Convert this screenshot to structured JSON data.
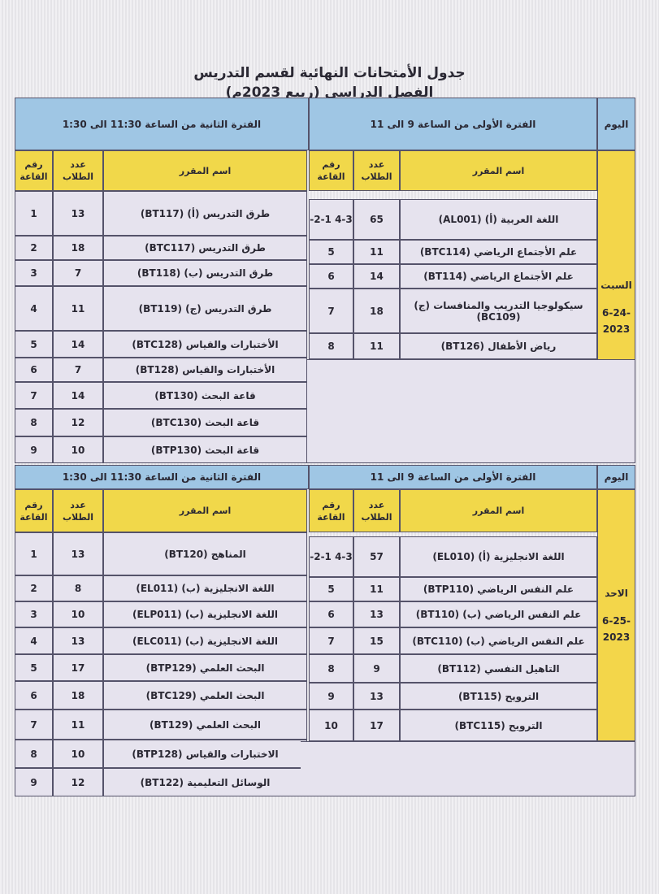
{
  "title": "جدول الأمتحانات النهائية لقسم التدريس",
  "subtitle": "الفصل الدراسي (ربيع 2023م)",
  "headers": {
    "day": "اليوم",
    "course": "اسم المقرر",
    "students": "عدد الطلاب",
    "room": "رقم القاعة"
  },
  "sections": [
    {
      "day_name": "السبت",
      "date_line1": "-6-24",
      "date_line2": "2023",
      "period1_label": "الفترة الأولى من الساعة 9 الى 11",
      "period2_label": "الفترة الثانية من الساعة 11:30 الى 1:30",
      "period1_rows": [
        {
          "course": "اللغة العربية (أ) (AL001)",
          "students": "65",
          "room": "-2-1 4-3"
        },
        {
          "course": "علم الأجتماع الرياضي (BTC114)",
          "students": "11",
          "room": "5"
        },
        {
          "course": "علم الأجتماع الرياضي (BT114)",
          "students": "14",
          "room": "6"
        },
        {
          "course": "سيكولوجيا التدريب والمنافسات (ج) (BC109)",
          "students": "18",
          "room": "7"
        },
        {
          "course": "رياض الأطفال (BT126)",
          "students": "11",
          "room": "8"
        }
      ],
      "period2_rows": [
        {
          "course": "طرق التدريس (أ) (BT117)",
          "students": "13",
          "room": "1"
        },
        {
          "course": "طرق التدريس (BTC117)",
          "students": "18",
          "room": "2"
        },
        {
          "course": "طرق التدريس (ب) (BT118)",
          "students": "7",
          "room": "3"
        },
        {
          "course": "طرق التدريس (ج) (BT119)",
          "students": "11",
          "room": "4"
        },
        {
          "course": "الأختبارات والقياس (BTC128)",
          "students": "14",
          "room": "5"
        },
        {
          "course": "الأختبارات والقياس (BT128)",
          "students": "7",
          "room": "6"
        },
        {
          "course": "قاعة البحث (BT130)",
          "students": "14",
          "room": "7"
        },
        {
          "course": "قاعة البحث (BTC130)",
          "students": "12",
          "room": "8"
        },
        {
          "course": "قاعة البحث (BTP130)",
          "students": "10",
          "room": "9"
        }
      ]
    },
    {
      "day_name": "الاحد",
      "date_line1": "-6-25",
      "date_line2": "2023",
      "period1_label": "الفترة الأولى من الساعة 9 الى 11",
      "period2_label": "الفترة الثانية من الساعة 11:30 الى 1:30",
      "period1_rows": [
        {
          "course": "اللغة الانجليزية (أ) (EL010)",
          "students": "57",
          "room": "-2-1 4-3"
        },
        {
          "course": "علم النفس الرياضي (BTP110)",
          "students": "11",
          "room": "5"
        },
        {
          "course": "علم النفس الرياضي (ب) (BT110)",
          "students": "13",
          "room": "6"
        },
        {
          "course": "علم النفس الرياضي (ب) (BTC110)",
          "students": "15",
          "room": "7"
        },
        {
          "course": "التاهيل النفسي (BT112)",
          "students": "9",
          "room": "8"
        },
        {
          "course": "الترويح (BT115)",
          "students": "13",
          "room": "9"
        },
        {
          "course": "الترويح (BTC115)",
          "students": "17",
          "room": "10"
        }
      ],
      "period2_rows": [
        {
          "course": "المناهج (BT120)",
          "students": "13",
          "room": "1"
        },
        {
          "course": "اللغة الانجليزية (ب) (EL011)",
          "students": "8",
          "room": "2"
        },
        {
          "course": "اللغة الانجليزية (ب) (ELP011)",
          "students": "10",
          "room": "3"
        },
        {
          "course": "اللغة الانجليزية (ب) (ELC011)",
          "students": "13",
          "room": "4"
        },
        {
          "course": "البحث العلمي (BTP129)",
          "students": "17",
          "room": "5"
        },
        {
          "course": "البحث العلمي (BTC129)",
          "students": "18",
          "room": "6"
        },
        {
          "course": "البحث العلمي (BT129)",
          "students": "11",
          "room": "7"
        },
        {
          "course": "الاختبارات والقياس (BTP128)",
          "students": "10",
          "room": "8"
        },
        {
          "course": "الوسائل التعليمية (BT122)",
          "students": "12",
          "room": "9"
        }
      ]
    }
  ]
}
